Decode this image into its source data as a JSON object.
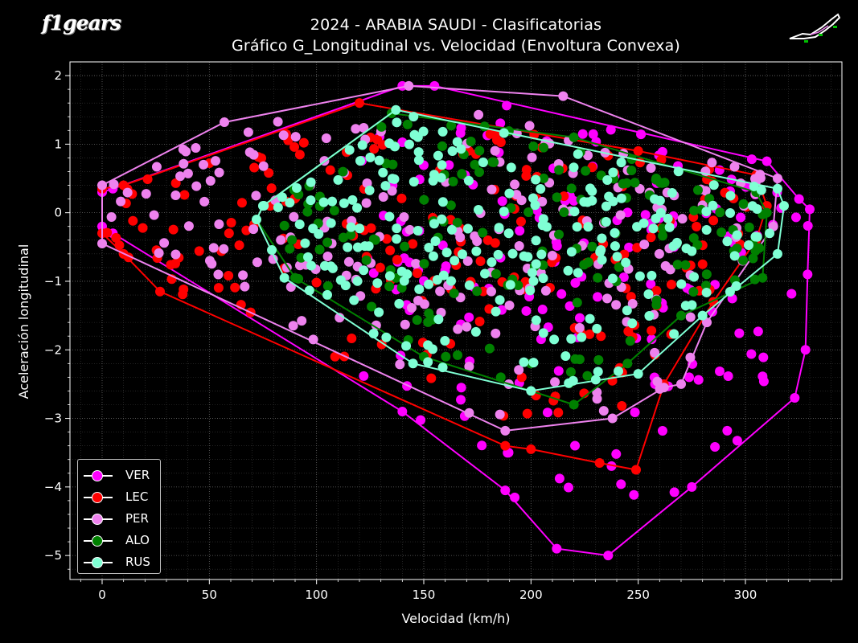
{
  "chart_data": {
    "type": "scatter",
    "title": "2024 - ARABIA SAUDI - Clasificatorias",
    "subtitle": "Gráfico G_Longitudinal vs. Velocidad (Envoltura Convexa)",
    "xlabel": "Velocidad (km/h)",
    "ylabel": "Aceleración longitudinal",
    "xlim": [
      -15,
      345
    ],
    "ylim": [
      -5.35,
      2.2
    ],
    "xticks": [
      0,
      50,
      100,
      150,
      200,
      250,
      300
    ],
    "yticks": [
      -5,
      -4,
      -3,
      -2,
      -1,
      0,
      1,
      2
    ],
    "grid": true,
    "legend_position": "lower-left",
    "series": [
      {
        "name": "VER",
        "color": "#ff00ff",
        "hull": [
          [
            0,
            0.3
          ],
          [
            5,
            0.35
          ],
          [
            140,
            1.85
          ],
          [
            155,
            1.85
          ],
          [
            310,
            0.75
          ],
          [
            325,
            0.2
          ],
          [
            330,
            0.05
          ],
          [
            329,
            -0.9
          ],
          [
            328,
            -2.0
          ],
          [
            323,
            -2.7
          ],
          [
            275,
            -4.0
          ],
          [
            236,
            -5.0
          ],
          [
            212,
            -4.9
          ],
          [
            188,
            -4.05
          ],
          [
            140,
            -2.9
          ],
          [
            5,
            -0.3
          ],
          [
            0,
            -0.2
          ]
        ],
        "cloud": {
          "xmin": 120,
          "xmax": 330,
          "ymin": -4.2,
          "ymax": 1.7,
          "n": 160
        }
      },
      {
        "name": "LEC",
        "color": "#ff0000",
        "hull": [
          [
            0,
            0.35
          ],
          [
            10,
            0.4
          ],
          [
            120,
            1.6
          ],
          [
            250,
            0.9
          ],
          [
            305,
            0.55
          ],
          [
            310,
            0.1
          ],
          [
            305,
            -0.4
          ],
          [
            285,
            -1.3
          ],
          [
            262,
            -2.5
          ],
          [
            249,
            -3.75
          ],
          [
            232,
            -3.65
          ],
          [
            200,
            -3.45
          ],
          [
            188,
            -3.4
          ],
          [
            27,
            -1.15
          ],
          [
            10,
            -0.6
          ],
          [
            0,
            -0.3
          ]
        ],
        "cloud": {
          "xmin": 0,
          "xmax": 310,
          "ymin": -3.0,
          "ymax": 1.3,
          "n": 190
        }
      },
      {
        "name": "PER",
        "color": "#ee82ee",
        "hull": [
          [
            0,
            0.4
          ],
          [
            57,
            1.32
          ],
          [
            143,
            1.85
          ],
          [
            215,
            1.7
          ],
          [
            315,
            0.5
          ],
          [
            313,
            -0.2
          ],
          [
            282,
            -1.6
          ],
          [
            270,
            -2.5
          ],
          [
            262,
            -2.55
          ],
          [
            238,
            -3.0
          ],
          [
            188,
            -3.18
          ],
          [
            0,
            -0.45
          ]
        ],
        "cloud": {
          "xmin": 0,
          "xmax": 315,
          "ymin": -3.0,
          "ymax": 1.7,
          "n": 200
        }
      },
      {
        "name": "ALO",
        "color": "#008000",
        "hull": [
          [
            75,
            0.1
          ],
          [
            135,
            1.45
          ],
          [
            220,
            1.1
          ],
          [
            305,
            0.3
          ],
          [
            310,
            0.0
          ],
          [
            308,
            -0.95
          ],
          [
            270,
            -1.5
          ],
          [
            245,
            -2.2
          ],
          [
            220,
            -2.8
          ],
          [
            150,
            -2.1
          ],
          [
            90,
            -0.95
          ],
          [
            72,
            -0.1
          ]
        ],
        "cloud": {
          "xmin": 75,
          "xmax": 310,
          "ymin": -2.5,
          "ymax": 1.4,
          "n": 150
        }
      },
      {
        "name": "RUS",
        "color": "#7fffd4",
        "hull": [
          [
            75,
            0.1
          ],
          [
            137,
            1.5
          ],
          [
            315,
            0.35
          ],
          [
            318,
            0.1
          ],
          [
            315,
            -0.6
          ],
          [
            280,
            -1.5
          ],
          [
            250,
            -2.35
          ],
          [
            200,
            -2.6
          ],
          [
            145,
            -2.2
          ],
          [
            85,
            -0.95
          ],
          [
            72,
            -0.1
          ]
        ],
        "cloud": {
          "xmin": 75,
          "xmax": 318,
          "ymin": -2.5,
          "ymax": 1.45,
          "n": 230
        }
      }
    ]
  }
}
